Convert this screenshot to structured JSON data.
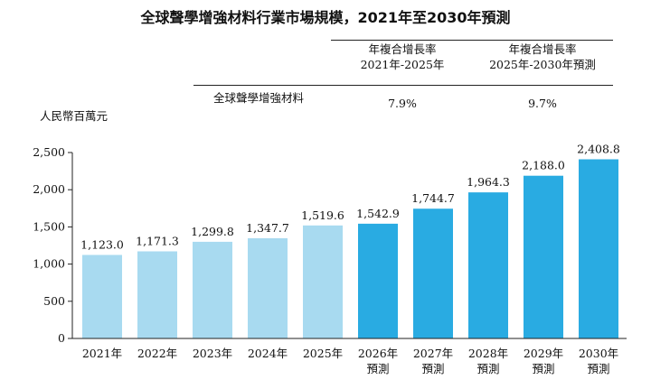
{
  "title": "全球聲學增強材料行業市場規模，2021年至2030年預測",
  "cagr_table": {
    "headers": [
      {
        "line1": "年複合增長率",
        "line2": "2021年-2025年"
      },
      {
        "line1": "年複合增長率",
        "line2": "2025年-2030年預測"
      }
    ],
    "row_label": "全球聲學增強材料",
    "values": [
      "7.9%",
      "9.7%"
    ]
  },
  "chart_data": {
    "type": "bar",
    "title": "全球聲學增強材料行業市場規模，2021年至2030年預測",
    "ylabel": "人民幣百萬元",
    "xlabel": "",
    "ylim": [
      0,
      2500
    ],
    "yticks": [
      0,
      500,
      1000,
      1500,
      2000,
      2500
    ],
    "ytick_labels": [
      "0",
      "500",
      "1,000",
      "1,500",
      "2,000",
      "2,500"
    ],
    "categories": [
      {
        "line1": "2021年",
        "line2": ""
      },
      {
        "line1": "2022年",
        "line2": ""
      },
      {
        "line1": "2023年",
        "line2": ""
      },
      {
        "line1": "2024年",
        "line2": ""
      },
      {
        "line1": "2025年",
        "line2": ""
      },
      {
        "line1": "2026年",
        "line2": "預測"
      },
      {
        "line1": "2027年",
        "line2": "預測"
      },
      {
        "line1": "2028年",
        "line2": "預測"
      },
      {
        "line1": "2029年",
        "line2": "預測"
      },
      {
        "line1": "2030年",
        "line2": "預測"
      }
    ],
    "values": [
      1123.0,
      1171.3,
      1299.8,
      1347.7,
      1519.6,
      1542.9,
      1744.7,
      1964.3,
      2188.0,
      2408.8
    ],
    "value_labels": [
      "1,123.0",
      "1,171.3",
      "1,299.8",
      "1,347.7",
      "1,519.6",
      "1,542.9",
      "1,744.7",
      "1,964.3",
      "2,188.0",
      "2,408.8"
    ],
    "colors": {
      "historical": "#a8daf0",
      "forecast": "#29abe2"
    },
    "forecast_start_index": 5,
    "grid": false,
    "legend": "none"
  }
}
